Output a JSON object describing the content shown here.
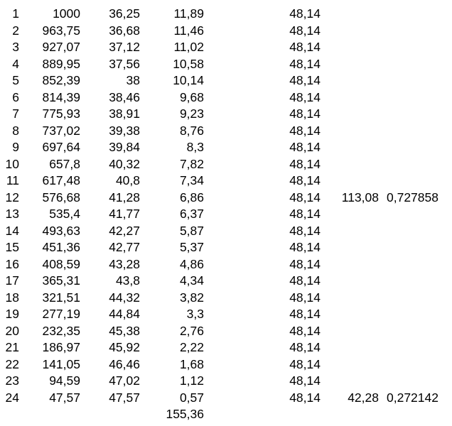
{
  "colors": {
    "background": "#ffffff",
    "text": "#000000"
  },
  "table": {
    "decimal_separator": ",",
    "rows": [
      [
        "1",
        "1000",
        "36,25",
        "11,89",
        "48,14",
        "",
        ""
      ],
      [
        "2",
        "963,75",
        "36,68",
        "11,46",
        "48,14",
        "",
        ""
      ],
      [
        "3",
        "927,07",
        "37,12",
        "11,02",
        "48,14",
        "",
        ""
      ],
      [
        "4",
        "889,95",
        "37,56",
        "10,58",
        "48,14",
        "",
        ""
      ],
      [
        "5",
        "852,39",
        "38",
        "10,14",
        "48,14",
        "",
        ""
      ],
      [
        "6",
        "814,39",
        "38,46",
        "9,68",
        "48,14",
        "",
        ""
      ],
      [
        "7",
        "775,93",
        "38,91",
        "9,23",
        "48,14",
        "",
        ""
      ],
      [
        "8",
        "737,02",
        "39,38",
        "8,76",
        "48,14",
        "",
        ""
      ],
      [
        "9",
        "697,64",
        "39,84",
        "8,3",
        "48,14",
        "",
        ""
      ],
      [
        "10",
        "657,8",
        "40,32",
        "7,82",
        "48,14",
        "",
        ""
      ],
      [
        "11",
        "617,48",
        "40,8",
        "7,34",
        "48,14",
        "",
        ""
      ],
      [
        "12",
        "576,68",
        "41,28",
        "6,86",
        "48,14",
        "113,08",
        "0,727858"
      ],
      [
        "13",
        "535,4",
        "41,77",
        "6,37",
        "48,14",
        "",
        ""
      ],
      [
        "14",
        "493,63",
        "42,27",
        "5,87",
        "48,14",
        "",
        ""
      ],
      [
        "15",
        "451,36",
        "42,77",
        "5,37",
        "48,14",
        "",
        ""
      ],
      [
        "16",
        "408,59",
        "43,28",
        "4,86",
        "48,14",
        "",
        ""
      ],
      [
        "17",
        "365,31",
        "43,8",
        "4,34",
        "48,14",
        "",
        ""
      ],
      [
        "18",
        "321,51",
        "44,32",
        "3,82",
        "48,14",
        "",
        ""
      ],
      [
        "19",
        "277,19",
        "44,84",
        "3,3",
        "48,14",
        "",
        ""
      ],
      [
        "20",
        "232,35",
        "45,38",
        "2,76",
        "48,14",
        "",
        ""
      ],
      [
        "21",
        "186,97",
        "45,92",
        "2,22",
        "48,14",
        "",
        ""
      ],
      [
        "22",
        "141,05",
        "46,46",
        "1,68",
        "48,14",
        "",
        ""
      ],
      [
        "23",
        "94,59",
        "47,02",
        "1,12",
        "48,14",
        "",
        ""
      ],
      [
        "24",
        "47,57",
        "47,57",
        "0,57",
        "48,14",
        "42,28",
        "0,272142"
      ],
      [
        "",
        "",
        "",
        "155,36",
        "",
        "",
        ""
      ]
    ]
  }
}
